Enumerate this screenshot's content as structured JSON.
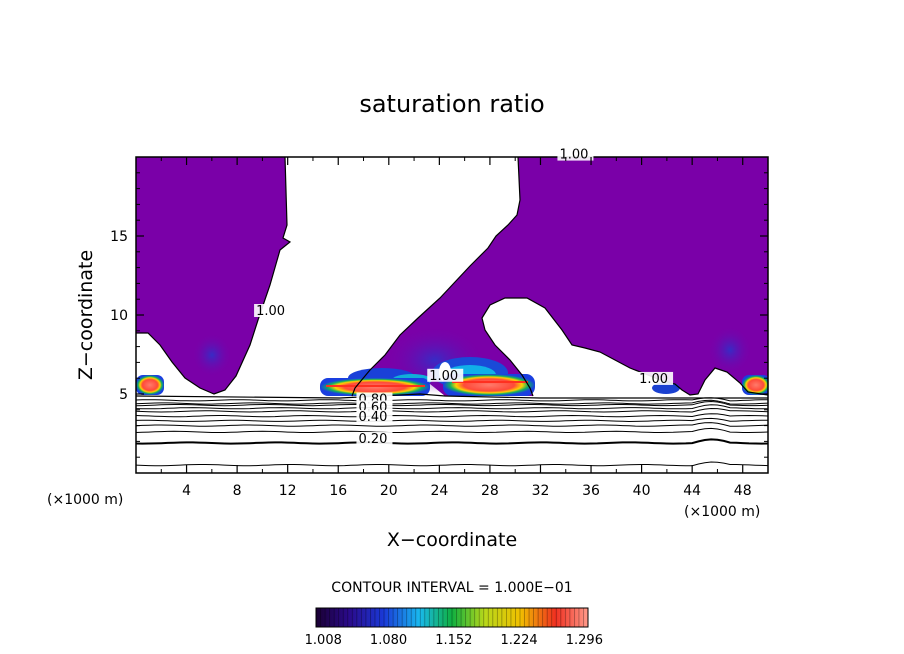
{
  "chart_data": {
    "type": "heatmap",
    "title": "saturation ratio",
    "xlabel": "X−coordinate",
    "ylabel": "Z−coordinate",
    "x_unit": "(×1000 m)",
    "x_unit_right": "(×1000 m)",
    "xlim": [
      0,
      50
    ],
    "ylim": [
      0,
      20
    ],
    "x_ticks": [
      "4",
      "8",
      "12",
      "16",
      "20",
      "24",
      "28",
      "32",
      "36",
      "40",
      "44",
      "48"
    ],
    "y_ticks": [
      "5",
      "10",
      "15"
    ],
    "contour_interval_text": "CONTOUR INTERVAL = 1.000E−01",
    "contour_labels": [
      {
        "text": "1.00",
        "x": 33.5,
        "z": 19.9
      },
      {
        "text": "1.00",
        "x": 9.5,
        "z": 10.0
      },
      {
        "text": "1.00",
        "x": 23.2,
        "z": 5.9
      },
      {
        "text": "1.00",
        "x": 39.8,
        "z": 5.7
      },
      {
        "text": "0.80",
        "x": 17.6,
        "z": 4.4
      },
      {
        "text": "0.60",
        "x": 17.6,
        "z": 3.9
      },
      {
        "text": "0.40",
        "x": 17.6,
        "z": 3.3
      },
      {
        "text": "0.20",
        "x": 17.6,
        "z": 1.9
      }
    ],
    "colorbar": {
      "ticks": [
        "1.008",
        "1.080",
        "1.152",
        "1.224",
        "1.296"
      ],
      "range": [
        1.0,
        1.3
      ]
    },
    "stable_levels_z": [
      0.5,
      1.9,
      2.6,
      3.0,
      3.3,
      3.6,
      3.9,
      4.1,
      4.3,
      4.4,
      4.6
    ],
    "supersaturated_regions": [
      {
        "x_start": 0,
        "x_end": 9.5,
        "z_bottom": 5.0,
        "z_top": 20.0,
        "value": 1.005
      },
      {
        "x_start": 15.8,
        "x_end": 50,
        "z_bottom": 5.0,
        "z_top": 20.0,
        "value": 1.005
      }
    ],
    "unsaturated_regions": [
      {
        "x_start": 0,
        "x_end": 2.0,
        "z_bottom": 5.0,
        "z_top": 8.8
      },
      {
        "x_start": 26.0,
        "x_end": 32.5,
        "z_bottom": 6.0,
        "z_top": 10.6
      },
      {
        "x_start": 42.0,
        "x_end": 46.5,
        "z_bottom": 5.0,
        "z_top": 7.0
      }
    ],
    "hotspots": [
      {
        "x_center": 1.0,
        "z_center": 5.5,
        "max_value": 1.296
      },
      {
        "x_center": 18.5,
        "z_center": 5.6,
        "max_value": 1.296
      },
      {
        "x_center": 27.5,
        "z_center": 5.6,
        "max_value": 1.296
      },
      {
        "x_center": 49.2,
        "z_center": 5.6,
        "max_value": 1.296
      }
    ]
  }
}
